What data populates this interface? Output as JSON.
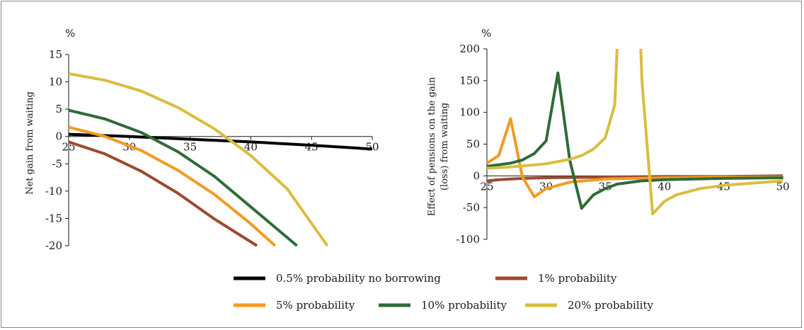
{
  "chart_data": [
    {
      "type": "line",
      "unit_label": "%",
      "xlabel": "",
      "ylabel": "Net gain from waiting",
      "xlim": [
        25,
        50
      ],
      "ylim": [
        -20,
        15
      ],
      "xticks": [
        "25",
        "30",
        "35",
        "40",
        "45",
        "50"
      ],
      "yticks": [
        "15",
        "10",
        "5",
        "0",
        "-5",
        "-10",
        "-15",
        "-20"
      ],
      "series": [
        {
          "key": "s05",
          "x": [
            25,
            30,
            35,
            40,
            45,
            50
          ],
          "y": [
            0.4,
            0.0,
            -0.5,
            -1.0,
            -1.6,
            -2.3
          ]
        },
        {
          "key": "s1",
          "x": [
            25,
            28,
            31,
            34,
            37,
            40.5
          ],
          "y": [
            -1.0,
            -3.2,
            -6.4,
            -10.4,
            -15.1,
            -20.0
          ]
        },
        {
          "key": "s5",
          "x": [
            25,
            28,
            31,
            34,
            37,
            40,
            42
          ],
          "y": [
            1.7,
            0.0,
            -2.6,
            -6.2,
            -10.6,
            -16.0,
            -20.0
          ]
        },
        {
          "key": "s10",
          "x": [
            25,
            28,
            31,
            34,
            37,
            40,
            43.8
          ],
          "y": [
            4.8,
            3.2,
            0.7,
            -2.8,
            -7.3,
            -12.9,
            -20.0
          ]
        },
        {
          "key": "s20",
          "x": [
            25,
            28,
            31,
            34,
            37,
            40,
            43,
            46.3
          ],
          "y": [
            11.5,
            10.3,
            8.3,
            5.3,
            1.4,
            -3.5,
            -9.6,
            -20.0
          ]
        }
      ]
    },
    {
      "type": "line",
      "unit_label": "%",
      "xlabel": "",
      "ylabel": "Effect of pensions on the gain (loss) from waiting",
      "xlim": [
        25,
        50
      ],
      "ylim": [
        -100,
        200
      ],
      "xticks": [
        "25",
        "30",
        "35",
        "40",
        "45",
        "50"
      ],
      "yticks": [
        "200",
        "150",
        "100",
        "50",
        "0",
        "-50",
        "-100"
      ],
      "series": [
        {
          "key": "s1",
          "x": [
            25,
            26,
            28,
            30,
            35,
            40,
            45,
            50
          ],
          "y": [
            -8,
            -6,
            -4,
            -3,
            -2,
            -1,
            -1,
            0
          ]
        },
        {
          "key": "s5",
          "x": [
            25,
            26,
            27,
            28,
            29,
            30,
            32,
            35,
            40,
            45,
            50
          ],
          "y": [
            20,
            32,
            90,
            -2,
            -33,
            -20,
            -10,
            -5,
            -3,
            -2,
            -2
          ]
        },
        {
          "key": "s10",
          "x": [
            25,
            27,
            28,
            29,
            30,
            31,
            32,
            33,
            34,
            35,
            36,
            38,
            40,
            45,
            50
          ],
          "y": [
            15,
            20,
            25,
            35,
            55,
            162,
            25,
            -51,
            -30,
            -20,
            -13,
            -8,
            -6,
            -4,
            -3
          ]
        },
        {
          "key": "s20",
          "x": [
            25,
            27,
            30,
            32,
            33,
            34,
            35,
            35.8,
            36,
            37,
            38,
            38.1,
            39,
            40,
            41,
            43,
            45,
            47,
            50
          ],
          "y": [
            12,
            14,
            19,
            26,
            32,
            42,
            60,
            112,
            200,
            null,
            200,
            150,
            -60,
            -40,
            -30,
            -20,
            -15,
            -12,
            -8
          ]
        }
      ]
    }
  ],
  "legend": [
    {
      "key": "s05",
      "label": "0.5% probability no borrowing",
      "color": "#000000"
    },
    {
      "key": "s1",
      "label": "1% probability",
      "color": "#9c4a2e"
    },
    {
      "key": "s5",
      "label": "5% probability",
      "color": "#f39a23"
    },
    {
      "key": "s10",
      "label": "10% probability",
      "color": "#2f6b38"
    },
    {
      "key": "s20",
      "label": "20% probability",
      "color": "#d9bd3e"
    }
  ],
  "colors": {
    "s05": "#000000",
    "s1": "#9c4a2e",
    "s5": "#f39a23",
    "s10": "#2f6b38",
    "s20": "#d9bd3e",
    "axis": "#1a1a1a"
  }
}
